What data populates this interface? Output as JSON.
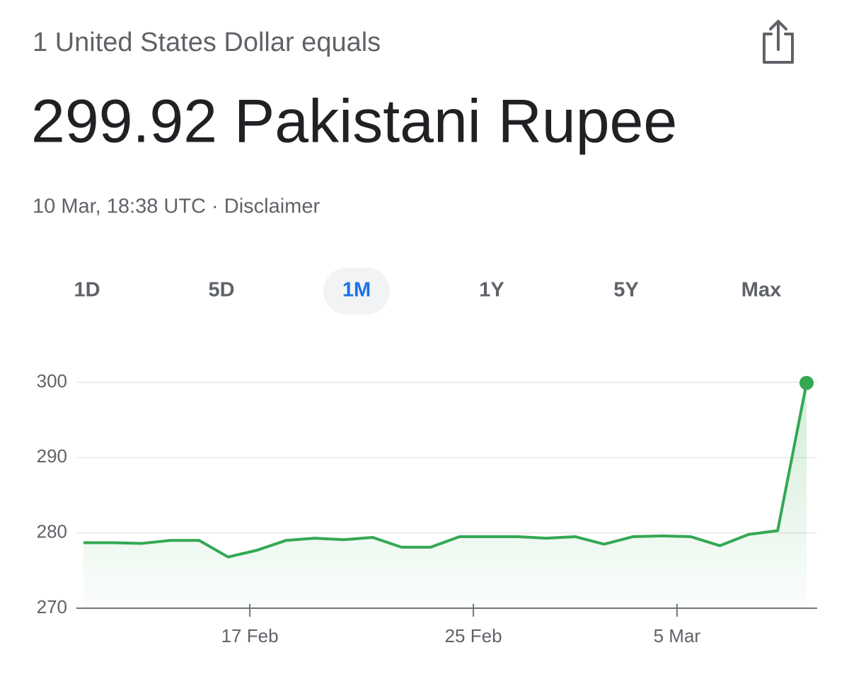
{
  "header": {
    "subtitle": "1 United States Dollar equals",
    "result": "299.92 Pakistani Rupee",
    "timestamp": "10 Mar, 18:38 UTC · Disclaimer"
  },
  "ranges": {
    "options": [
      "1D",
      "5D",
      "1M",
      "1Y",
      "5Y",
      "Max"
    ],
    "selected": 2
  },
  "chart_data": {
    "type": "line",
    "fill_area": true,
    "color": "#34a853",
    "categories": [
      null,
      null,
      null,
      null,
      null,
      null,
      null,
      null,
      null,
      null,
      null,
      null,
      null,
      null,
      null,
      null,
      null,
      null,
      null,
      null,
      null,
      null,
      null,
      null,
      null,
      null
    ],
    "values": [
      278.7,
      278.7,
      278.6,
      279.0,
      279.0,
      276.8,
      277.7,
      279.0,
      279.3,
      279.1,
      279.4,
      278.1,
      278.1,
      279.5,
      279.5,
      279.5,
      279.3,
      279.5,
      278.5,
      279.5,
      279.6,
      279.5,
      278.3,
      279.8,
      280.3,
      299.92
    ],
    "xlim": [
      0,
      25
    ],
    "xticks": [
      {
        "value": 5.75,
        "label": "17 Feb"
      },
      {
        "value": 13.48,
        "label": "25 Feb"
      },
      {
        "value": 20.52,
        "label": "5 Mar"
      }
    ],
    "ylim": [
      270,
      300
    ],
    "yticks": [
      270,
      280,
      290,
      300
    ],
    "grid": true
  }
}
